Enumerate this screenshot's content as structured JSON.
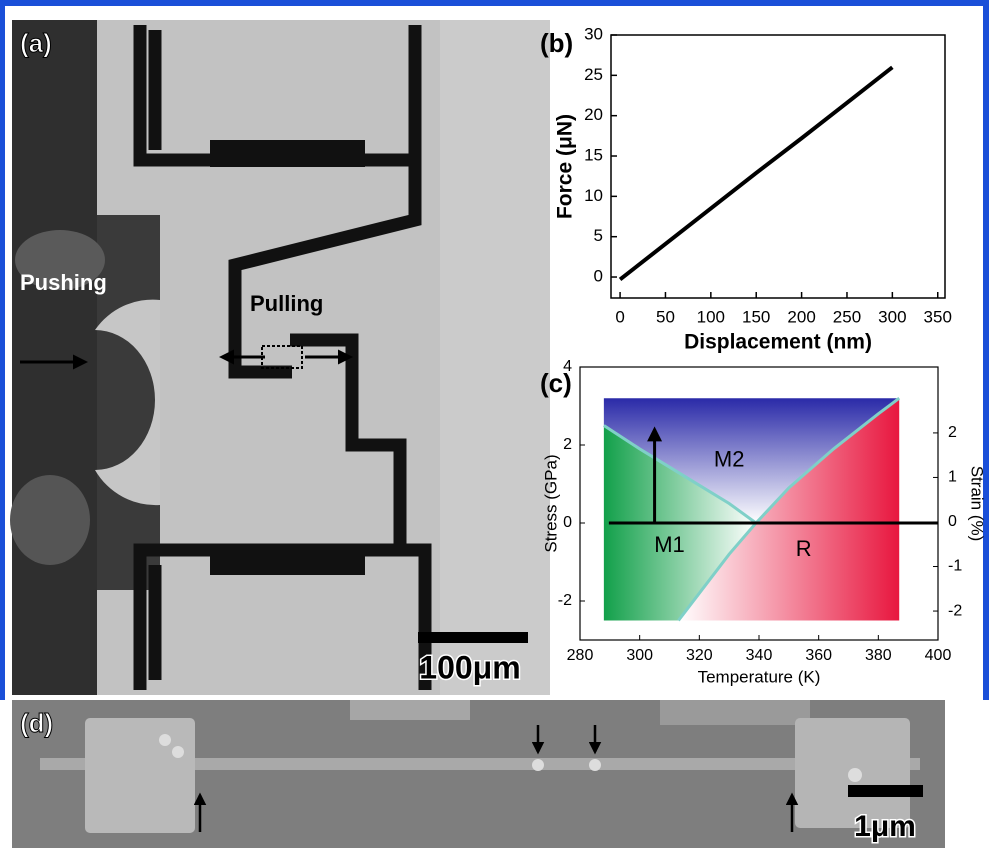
{
  "panels": {
    "a": {
      "label": "(a)",
      "pushing": "Pushing",
      "pulling": "Pulling",
      "scale_bar": "100μm"
    },
    "d": {
      "label": "(d)",
      "scale_bar": "1μm"
    }
  },
  "chart_data": [
    {
      "type": "line",
      "label": "(b)",
      "x_label": "Displacement (nm)",
      "y_label": "Force (μN)",
      "x": [
        0,
        50,
        100,
        150,
        200,
        250,
        300
      ],
      "series": [
        {
          "color": "#000000",
          "values": [
            -0.3,
            4.1,
            8.5,
            12.9,
            17.2,
            21.6,
            26.0
          ]
        }
      ],
      "xlim": [
        -10,
        358
      ],
      "ylim": [
        -2.6,
        30
      ],
      "xticks": [
        0,
        50,
        100,
        150,
        200,
        250,
        300,
        350
      ],
      "yticks": [
        0,
        5,
        10,
        15,
        20,
        25,
        30
      ]
    },
    {
      "type": "phase",
      "label": "(c)",
      "x_label": "Temperature (K)",
      "y_label": "Stress (GPa)",
      "y2_label": "Strain (%)",
      "regions": [
        {
          "label": "M1",
          "color": "#12a04a"
        },
        {
          "label": "M2",
          "color": "#2a2aa8"
        },
        {
          "label": "R",
          "color": "#e8173f"
        }
      ],
      "boundaries": [
        {
          "x": [
            288,
            300,
            315,
            330,
            339
          ],
          "y": [
            2.5,
            1.9,
            1.2,
            0.5,
            0
          ]
        },
        {
          "x": [
            339,
            350,
            365,
            380,
            387
          ],
          "y": [
            0,
            0.9,
            1.9,
            2.8,
            3.2
          ]
        },
        {
          "x": [
            339,
            330,
            320,
            313
          ],
          "y": [
            0,
            -0.8,
            -1.8,
            -2.5
          ]
        }
      ],
      "boundary_color": "#7fd0c8",
      "xlim": [
        280,
        400
      ],
      "ylim": [
        -3,
        4
      ],
      "y2lim": [
        -2.65,
        3.48
      ],
      "xticks": [
        280,
        300,
        320,
        340,
        360,
        380,
        400
      ],
      "yticks": [
        -2,
        0,
        2,
        4
      ],
      "y2ticks": [
        -2,
        -1,
        0,
        1,
        2
      ]
    }
  ]
}
